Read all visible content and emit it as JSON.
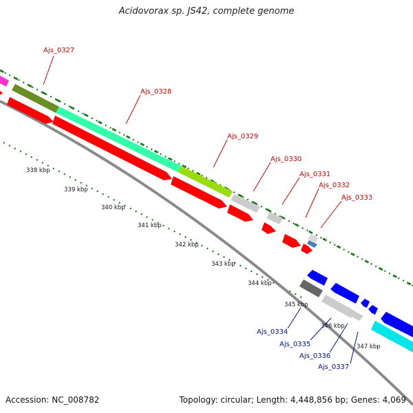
{
  "title": "Acidovorax sp. JS42, complete genome",
  "footer": {
    "accession": "Accession: NC_008782",
    "summary": "Topology: circular; Length: 4,448,856 bp; Genes: 4,069"
  },
  "colors": {
    "forward_cds": "#ff0000",
    "reverse_cds": "#0000ff",
    "backbone": "#888888",
    "ticks": "#1a7a1a",
    "label_top": "#cc0000",
    "label_bottom": "#00119a"
  },
  "kbp_labels": [
    "338 kbp",
    "339 kbp",
    "340 kbp",
    "341 kbp",
    "342 kbp",
    "343 kbp",
    "344 kbp",
    "345 kbp",
    "346 kbp",
    "347 kbp"
  ],
  "top_genes": [
    "Ajs_0327",
    "Ajs_0328",
    "Ajs_0329",
    "Ajs_0330",
    "Ajs_0331",
    "Ajs_0332",
    "Ajs_0333"
  ],
  "bottom_genes": [
    "Ajs_0334",
    "Ajs_0335",
    "Ajs_0336",
    "Ajs_0337"
  ]
}
